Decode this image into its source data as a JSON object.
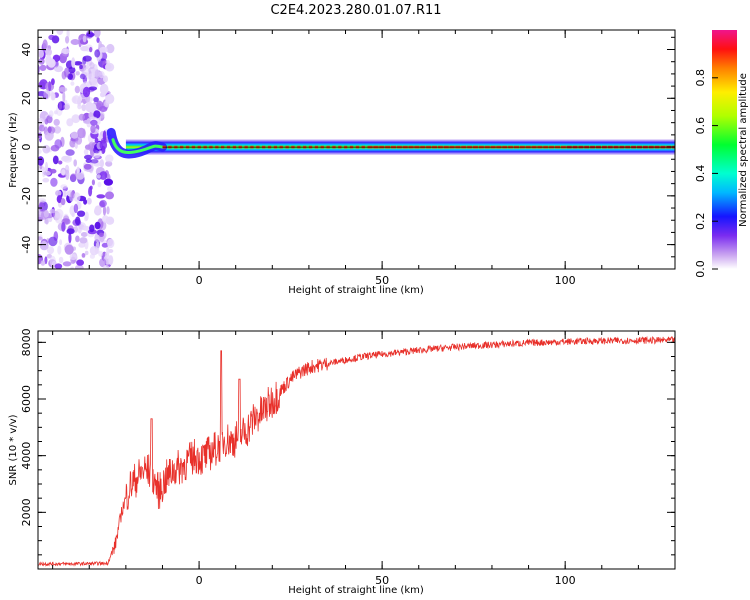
{
  "title": "C2E4.2023.280.01.07.R11",
  "chart_data": [
    {
      "type": "heatmap",
      "xlabel": "Height of straight line (km)",
      "ylabel": "Frequency (Hz)",
      "xlim": [
        -44,
        130
      ],
      "ylim": [
        -50,
        48
      ],
      "xticks": [
        0,
        50,
        100
      ],
      "yticks": [
        -40,
        -20,
        0,
        20,
        40
      ],
      "colorbar": {
        "label": "Normalized spectral amplitude",
        "range": [
          0,
          1
        ],
        "ticks": [
          "0.0",
          "0.2",
          "0.4",
          "0.6",
          "0.8"
        ]
      },
      "features": {
        "noise_region_x": [
          -44,
          -24
        ],
        "line_frequency_hz": 0,
        "line_start_x": -24,
        "line_peak_amplitude": 0.85
      }
    },
    {
      "type": "line",
      "xlabel": "Height of straight line (km)",
      "ylabel": "SNR (10 * v/v)",
      "xlim": [
        -44,
        130
      ],
      "ylim": [
        0,
        8400
      ],
      "xticks": [
        0,
        50,
        100
      ],
      "yticks": [
        2000,
        4000,
        6000,
        8000
      ],
      "series": [
        {
          "color": "#e8302a",
          "x": [
            -44,
            -35,
            -25,
            -23,
            -21,
            -19,
            -17,
            -15,
            -13,
            -11,
            -9,
            -7,
            -5,
            -3,
            -1,
            1,
            3,
            5,
            7,
            9,
            11,
            13,
            15,
            17,
            19,
            21,
            23,
            25,
            27,
            29,
            31,
            33,
            35,
            40,
            45,
            50,
            55,
            60,
            65,
            70,
            75,
            80,
            85,
            90,
            95,
            100,
            105,
            110,
            115,
            120,
            125,
            130
          ],
          "y": [
            180,
            180,
            200,
            800,
            2100,
            2900,
            3200,
            3500,
            3400,
            2700,
            3200,
            3500,
            3600,
            3800,
            4000,
            3900,
            4100,
            4300,
            4600,
            4500,
            4700,
            4900,
            5300,
            5500,
            5800,
            6100,
            6400,
            6700,
            6900,
            7050,
            7150,
            7200,
            7250,
            7380,
            7500,
            7580,
            7650,
            7720,
            7780,
            7830,
            7880,
            7910,
            7950,
            7980,
            8000,
            8020,
            8040,
            8050,
            8060,
            8070,
            8070,
            8080
          ]
        }
      ],
      "annotations": [
        {
          "x": -13,
          "y": 5300
        },
        {
          "x": 6,
          "y": 7700
        },
        {
          "x": 11,
          "y": 6700
        }
      ]
    }
  ]
}
